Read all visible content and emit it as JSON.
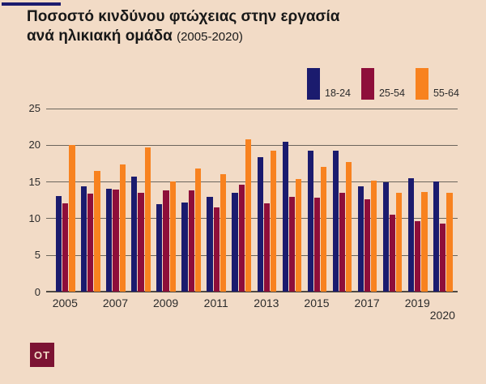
{
  "title": {
    "line1": "Ποσοστό κινδύνου φτώχειας στην εργασία",
    "line2_bold": "ανά ηλικιακή ομάδα",
    "line2_suffix": "(2005-2020)"
  },
  "legend": [
    {
      "label": "18-24",
      "color": "#1b1b6e"
    },
    {
      "label": "25-54",
      "color": "#8e0e3a"
    },
    {
      "label": "55-64",
      "color": "#f8821f"
    }
  ],
  "logo": {
    "text": "OT",
    "background": "#7c1333",
    "text_color": "#f2dbc6"
  },
  "colors": {
    "background": "#f2dbc6",
    "accent_line": "#1b1b6e",
    "gridline": "#6b655c",
    "axis_text": "#2b2b2b",
    "title_text": "#181818"
  },
  "chart_data": {
    "type": "bar",
    "title": "Ποσοστό κινδύνου φτώχειας στην εργασία ανά ηλικιακή ομάδα (2005-2020)",
    "xlabel": "",
    "ylabel": "",
    "ylim": [
      0,
      25
    ],
    "yticks": [
      0,
      5,
      10,
      15,
      20,
      25
    ],
    "grid": true,
    "legend_position": "top-right",
    "categories": [
      2005,
      2006,
      2007,
      2008,
      2009,
      2010,
      2011,
      2012,
      2013,
      2014,
      2015,
      2016,
      2017,
      2018,
      2019,
      2020
    ],
    "xtick_labels": [
      "2005",
      "2007",
      "2009",
      "2011",
      "2013",
      "2015",
      "2017",
      "2019"
    ],
    "xtick_extra_label": "2020",
    "series": [
      {
        "name": "18-24",
        "color": "#1b1b6e",
        "values": [
          13.0,
          14.4,
          14.0,
          15.7,
          11.9,
          12.1,
          12.9,
          13.5,
          18.3,
          20.4,
          19.2,
          19.2,
          14.3,
          14.9,
          15.4,
          15.0
        ]
      },
      {
        "name": "25-54",
        "color": "#8e0e3a",
        "values": [
          12.0,
          13.4,
          13.9,
          13.5,
          13.8,
          13.8,
          11.5,
          14.6,
          12.0,
          12.9,
          12.8,
          13.5,
          12.6,
          10.5,
          9.6,
          9.3
        ]
      },
      {
        "name": "55-64",
        "color": "#f8821f",
        "values": [
          20.0,
          16.5,
          17.3,
          19.7,
          15.0,
          16.8,
          16.0,
          20.7,
          19.2,
          15.3,
          17.0,
          17.7,
          15.1,
          13.5,
          13.6,
          13.5
        ]
      }
    ]
  }
}
